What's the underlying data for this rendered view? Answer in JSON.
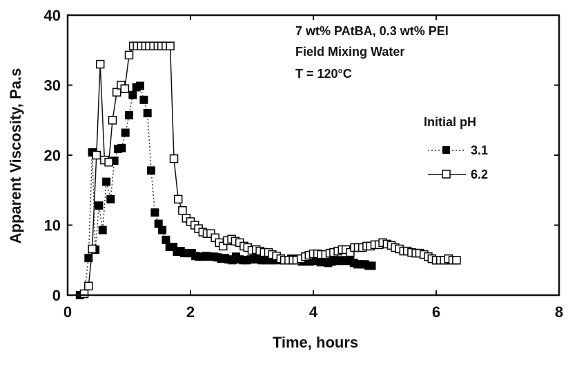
{
  "chart_data": {
    "type": "line",
    "xlabel": "Time, hours",
    "ylabel": "Apparent Viscosity, Pa.s",
    "xlim": [
      0,
      8
    ],
    "ylim": [
      0,
      40
    ],
    "xticks": [
      0,
      2,
      4,
      6,
      8
    ],
    "yticks": [
      0,
      10,
      20,
      30,
      40
    ],
    "grid": false,
    "annotations": [
      "7 wt% PAtBA, 0.3 wt% PEI",
      "Field Mixing Water",
      "T = 120°C"
    ],
    "legend": {
      "title": "Initial pH",
      "placement": "right"
    },
    "series": [
      {
        "name": "3.1",
        "marker": "filled-square",
        "line": "dotted",
        "color": "#000000",
        "x": [
          0.2,
          0.27,
          0.34,
          0.4,
          0.45,
          0.51,
          0.57,
          0.63,
          0.7,
          0.76,
          0.82,
          0.88,
          0.94,
          1.0,
          1.06,
          1.12,
          1.18,
          1.24,
          1.3,
          1.36,
          1.42,
          1.48,
          1.54,
          1.6,
          1.66,
          1.72,
          1.78,
          1.84,
          1.9,
          1.96,
          2.02,
          2.08,
          2.14,
          2.2,
          2.26,
          2.32,
          2.38,
          2.44,
          2.5,
          2.56,
          2.62,
          2.68,
          2.74,
          2.8,
          2.86,
          2.92,
          2.98,
          3.04,
          3.1,
          3.16,
          3.22,
          3.28,
          3.34,
          3.4,
          3.46,
          3.52,
          3.58,
          3.64,
          3.7,
          3.76,
          3.82,
          3.88,
          3.94,
          4.0,
          4.06,
          4.12,
          4.18,
          4.24,
          4.3,
          4.36,
          4.42,
          4.48,
          4.54,
          4.6,
          4.66,
          4.72,
          4.78,
          4.84,
          4.9,
          4.95
        ],
        "y": [
          0.0,
          0.2,
          5.3,
          20.4,
          6.5,
          12.8,
          9.3,
          16.2,
          13.7,
          19.2,
          20.9,
          21.0,
          23.2,
          25.7,
          28.6,
          29.7,
          29.9,
          27.9,
          26.0,
          17.8,
          11.8,
          10.2,
          9.3,
          7.9,
          6.9,
          6.9,
          6.2,
          6.3,
          6.0,
          6.0,
          6.0,
          5.6,
          5.5,
          5.5,
          5.6,
          5.5,
          5.5,
          5.4,
          5.2,
          5.3,
          5.1,
          5.0,
          5.5,
          5.1,
          5.0,
          5.0,
          5.1,
          5.3,
          5.1,
          5.0,
          5.0,
          5.0,
          5.0,
          5.0,
          5.2,
          5.0,
          5.0,
          5.2,
          5.2,
          5.0,
          4.8,
          5.0,
          4.8,
          4.9,
          4.9,
          4.7,
          4.8,
          4.6,
          4.8,
          4.9,
          5.0,
          4.9,
          5.0,
          4.9,
          4.6,
          4.4,
          4.4,
          4.4,
          4.2,
          4.2
        ]
      },
      {
        "name": "6.2",
        "marker": "open-square",
        "line": "solid",
        "color": "#000000",
        "x": [
          0.27,
          0.34,
          0.4,
          0.47,
          0.53,
          0.6,
          0.67,
          0.73,
          0.8,
          0.87,
          0.93,
          1.0,
          1.07,
          1.13,
          1.2,
          1.27,
          1.33,
          1.4,
          1.47,
          1.53,
          1.6,
          1.67,
          1.73,
          1.8,
          1.87,
          1.93,
          2.0,
          2.07,
          2.13,
          2.2,
          2.27,
          2.33,
          2.4,
          2.47,
          2.53,
          2.6,
          2.67,
          2.73,
          2.8,
          2.87,
          2.93,
          3.0,
          3.07,
          3.13,
          3.2,
          3.27,
          3.33,
          3.4,
          3.47,
          3.53,
          3.6,
          3.67,
          3.73,
          3.8,
          3.87,
          3.93,
          4.0,
          4.07,
          4.13,
          4.2,
          4.27,
          4.33,
          4.4,
          4.47,
          4.53,
          4.6,
          4.67,
          4.73,
          4.8,
          4.87,
          4.93,
          5.0,
          5.07,
          5.13,
          5.2,
          5.27,
          5.33,
          5.4,
          5.47,
          5.53,
          5.6,
          5.67,
          5.73,
          5.8,
          5.87,
          5.93,
          6.0,
          6.07,
          6.13,
          6.2,
          6.27,
          6.33
        ],
        "y": [
          0.2,
          1.3,
          6.6,
          20.0,
          33.0,
          19.3,
          19.0,
          25.0,
          29.0,
          30.0,
          29.5,
          34.3,
          35.6,
          35.6,
          35.6,
          35.6,
          35.6,
          35.6,
          35.6,
          35.6,
          35.6,
          35.6,
          19.5,
          13.7,
          12.1,
          11.0,
          10.5,
          10.0,
          9.5,
          9.0,
          8.8,
          8.8,
          8.2,
          7.5,
          7.0,
          7.8,
          8.0,
          7.7,
          7.5,
          7.0,
          6.8,
          6.4,
          6.5,
          6.3,
          6.1,
          6.1,
          5.8,
          5.6,
          5.2,
          5.0,
          5.0,
          5.0,
          5.0,
          5.2,
          5.5,
          5.7,
          5.9,
          5.9,
          5.8,
          5.8,
          6.0,
          6.1,
          6.3,
          6.5,
          6.5,
          6.1,
          6.8,
          6.8,
          6.8,
          7.0,
          7.0,
          7.2,
          7.2,
          7.5,
          7.3,
          7.1,
          6.8,
          6.6,
          6.3,
          6.3,
          6.1,
          6.0,
          6.0,
          5.8,
          5.5,
          5.2,
          5.0,
          5.0,
          5.0,
          5.2,
          5.0,
          5.0
        ]
      }
    ]
  }
}
